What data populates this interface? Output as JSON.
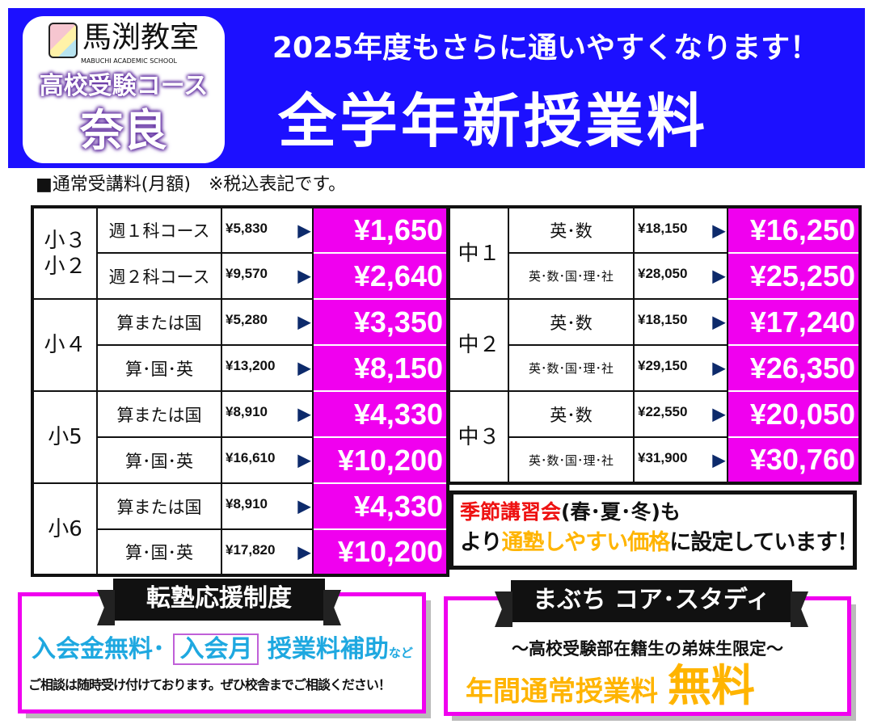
{
  "header": {
    "logo_name": "馬渕教室",
    "logo_sub": "MABUCHI ACADEMIC SCHOOL",
    "course": "高校受験コース",
    "area": "奈良",
    "headline": "2025年度もさらに通いやすくなります！",
    "title": "全学年新授業料"
  },
  "note": "■通常受講料(月額)　※税込表記です。",
  "arrow": "▶",
  "elementary": [
    {
      "grade": "小３\n小２",
      "rows": [
        {
          "course": "週１科コース",
          "old": "¥5,830",
          "new": "¥1,650"
        },
        {
          "course": "週２科コース",
          "old": "¥9,570",
          "new": "¥2,640"
        }
      ]
    },
    {
      "grade": "小４",
      "rows": [
        {
          "course": "算または国",
          "old": "¥5,280",
          "new": "¥3,350"
        },
        {
          "course": "算･国･英",
          "old": "¥13,200",
          "new": "¥8,150"
        }
      ]
    },
    {
      "grade": "小5",
      "rows": [
        {
          "course": "算または国",
          "old": "¥8,910",
          "new": "¥4,330"
        },
        {
          "course": "算･国･英",
          "old": "¥16,610",
          "new": "¥10,200"
        }
      ]
    },
    {
      "grade": "小6",
      "rows": [
        {
          "course": "算または国",
          "old": "¥8,910",
          "new": "¥4,330"
        },
        {
          "course": "算･国･英",
          "old": "¥17,820",
          "new": "¥10,200"
        }
      ]
    }
  ],
  "junior": [
    {
      "grade": "中１",
      "rows": [
        {
          "course": "英･数",
          "old": "¥18,150",
          "new": "¥16,250"
        },
        {
          "course": "英･数･国･理･社",
          "old": "¥28,050",
          "new": "¥25,250"
        }
      ]
    },
    {
      "grade": "中２",
      "rows": [
        {
          "course": "英･数",
          "old": "¥18,150",
          "new": "¥17,240"
        },
        {
          "course": "英･数･国･理･社",
          "old": "¥29,150",
          "new": "¥26,350"
        }
      ]
    },
    {
      "grade": "中３",
      "rows": [
        {
          "course": "英･数",
          "old": "¥22,550",
          "new": "¥20,050"
        },
        {
          "course": "英･数･国･理･社",
          "old": "¥31,900",
          "new": "¥30,760"
        }
      ]
    }
  ],
  "promo": {
    "red": "季節講習会",
    "l1_rest": "(春･夏･冬)も",
    "l2_a": "より",
    "l2_gold": "通塾しやすい価格",
    "l2_b": "に設定しています！"
  },
  "transfer": {
    "title": "転塾応援制度",
    "a": "入会金無料･",
    "framed": "入会月",
    "b": "授業料補助",
    "c": "など",
    "sub": "ご相談は随時受け付けております。ぜひ校舎までご相談ください！"
  },
  "core": {
    "title": "まぶち コア･スタディ",
    "sub": "～高校受験部在籍生の弟妹生限定～",
    "main": "年間通常授業料",
    "big": "無料"
  },
  "colors": {
    "banner": "#1c10ff",
    "price_bg": "#f000ef",
    "accent_gold": "#ffb400",
    "accent_red": "#ee1111",
    "accent_blue": "#1ea8e0"
  }
}
